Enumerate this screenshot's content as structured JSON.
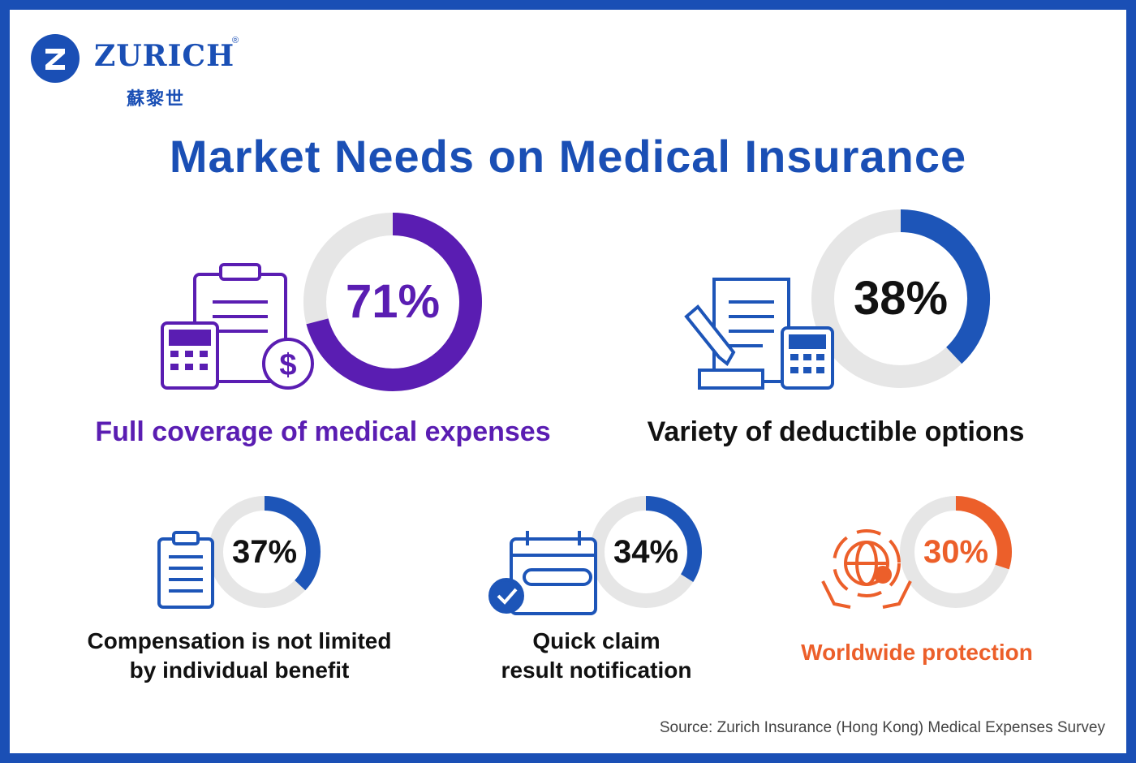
{
  "brand": {
    "name": "ZURICH",
    "reg_mark": "®",
    "chinese_name": "蘇黎世"
  },
  "title": "Market Needs on Medical Insurance",
  "source": "Source: Zurich Insurance (Hong Kong) Medical Expenses Survey",
  "colors": {
    "brand_blue": "#1a4fb5",
    "purple": "#5a1db2",
    "blue": "#1d55b8",
    "orange": "#ec5f2a",
    "track": "#e6e6e6",
    "dark_text": "#111111"
  },
  "chart_data": {
    "type": "donut",
    "title": "Market Needs on Medical Insurance",
    "unit": "%",
    "items": [
      {
        "label": "Full coverage of medical expenses",
        "value": 71,
        "display": "71%",
        "color": "#5a1db2",
        "icon": "clipboard-calculator-dollar-icon"
      },
      {
        "label": "Variety of deductible options",
        "value": 38,
        "display": "38%",
        "color": "#1d55b8",
        "icon": "document-pen-calculator-icon"
      },
      {
        "label": "Compensation is not limited by individual benefit",
        "value": 37,
        "display": "37%",
        "color": "#1d55b8",
        "icon": "clipboard-icon"
      },
      {
        "label": "Quick claim result notification",
        "value": 34,
        "display": "34%",
        "color": "#1d55b8",
        "icon": "calendar-check-icon"
      },
      {
        "label": "Worldwide protection",
        "value": 30,
        "display": "30%",
        "color": "#ec5f2a",
        "icon": "globe-hands-icon"
      }
    ]
  }
}
